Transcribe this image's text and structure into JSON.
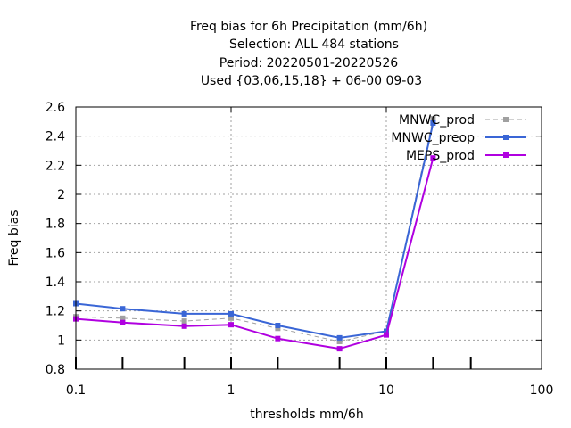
{
  "chart_data": {
    "type": "line",
    "title_lines": [
      "Freq bias  for 6h Precipitation (mm/6h)",
      "Selection: ALL    484 stations",
      "Period: 20220501-20220526",
      "Used {03,06,15,18} + 06-00 09-03"
    ],
    "xlabel": "thresholds mm/6h",
    "ylabel": "Freq bias",
    "x_scale": "log",
    "xlim": [
      0.1,
      100
    ],
    "ylim": [
      0.8,
      2.6
    ],
    "x_ticks": [
      0.1,
      1,
      10,
      100
    ],
    "x_tick_labels": [
      "0.1",
      "1",
      "10",
      "100"
    ],
    "y_ticks": [
      0.8,
      1,
      1.2,
      1.4,
      1.6,
      1.8,
      2,
      2.2,
      2.4,
      2.6
    ],
    "y_tick_labels": [
      "0.8",
      "1",
      "1.2",
      "1.4",
      "1.6",
      "1.8",
      "2",
      "2.2",
      "2.4",
      "2.6"
    ],
    "threshold_marks": [
      0.1,
      0.2,
      0.5,
      1,
      2,
      5,
      10,
      20,
      35
    ],
    "grid": true,
    "legend_position": "top-right",
    "x": [
      0.1,
      0.2,
      0.5,
      1,
      2,
      5,
      10,
      20
    ],
    "series": [
      {
        "name": "MNWC_prod",
        "color": "#a0a0a0",
        "dash": true,
        "values": [
          1.16,
          1.15,
          1.13,
          1.15,
          1.08,
          0.99,
          1.06,
          2.52
        ]
      },
      {
        "name": "MNWC_preop",
        "color": "#3a66d6",
        "dash": false,
        "values": [
          1.25,
          1.215,
          1.18,
          1.18,
          1.1,
          1.015,
          1.06,
          2.49
        ]
      },
      {
        "name": "MEPS_prod",
        "color": "#b000e0",
        "dash": false,
        "values": [
          1.145,
          1.12,
          1.095,
          1.105,
          1.01,
          0.94,
          1.035,
          2.25
        ]
      }
    ]
  }
}
